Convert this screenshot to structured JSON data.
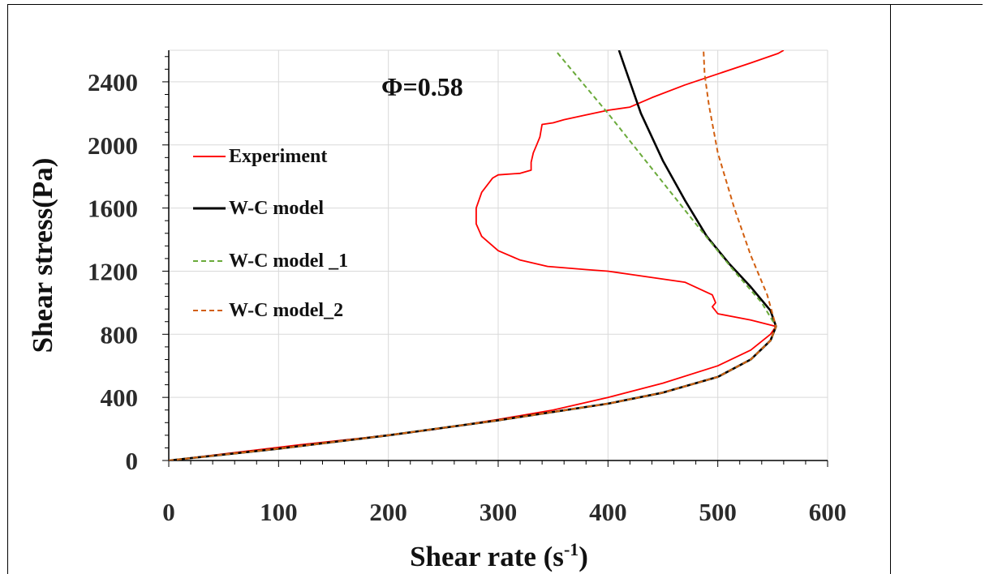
{
  "chart_data": {
    "type": "line",
    "title": "",
    "annotation": "Φ=0.58",
    "xlabel": "Shear rate (s",
    "xlabel_sup": "-1",
    "xlabel_end": ")",
    "ylabel": "Shear stress(Pa)",
    "xlim": [
      0,
      600
    ],
    "ylim": [
      0,
      2600
    ],
    "xticks": [
      0,
      100,
      200,
      300,
      400,
      500,
      600
    ],
    "yticks": [
      0,
      400,
      800,
      1200,
      1600,
      2000,
      2400
    ],
    "grid": true,
    "legend_position": "left-middle",
    "series": [
      {
        "name": "Experiment",
        "color": "#ff0000",
        "style": "solid",
        "points": [
          [
            0,
            0
          ],
          [
            60,
            50
          ],
          [
            120,
            100
          ],
          [
            180,
            145
          ],
          [
            240,
            195
          ],
          [
            300,
            260
          ],
          [
            350,
            320
          ],
          [
            400,
            400
          ],
          [
            450,
            490
          ],
          [
            500,
            600
          ],
          [
            530,
            700
          ],
          [
            548,
            800
          ],
          [
            553,
            850
          ],
          [
            530,
            890
          ],
          [
            500,
            930
          ],
          [
            495,
            975
          ],
          [
            498,
            1000
          ],
          [
            495,
            1050
          ],
          [
            470,
            1130
          ],
          [
            420,
            1180
          ],
          [
            400,
            1200
          ],
          [
            380,
            1210
          ],
          [
            345,
            1230
          ],
          [
            320,
            1270
          ],
          [
            300,
            1330
          ],
          [
            285,
            1420
          ],
          [
            280,
            1500
          ],
          [
            280,
            1600
          ],
          [
            285,
            1700
          ],
          [
            295,
            1790
          ],
          [
            300,
            1810
          ],
          [
            320,
            1820
          ],
          [
            330,
            1840
          ],
          [
            330,
            1890
          ],
          [
            332,
            1950
          ],
          [
            335,
            2000
          ],
          [
            338,
            2050
          ],
          [
            340,
            2130
          ],
          [
            350,
            2140
          ],
          [
            360,
            2160
          ],
          [
            380,
            2190
          ],
          [
            400,
            2220
          ],
          [
            420,
            2240
          ],
          [
            440,
            2300
          ],
          [
            470,
            2380
          ],
          [
            500,
            2450
          ],
          [
            530,
            2520
          ],
          [
            555,
            2580
          ],
          [
            560,
            2600
          ]
        ]
      },
      {
        "name": "W-C model",
        "color": "#000000",
        "style": "solid",
        "points": [
          [
            0,
            0
          ],
          [
            100,
            75
          ],
          [
            200,
            160
          ],
          [
            300,
            255
          ],
          [
            400,
            360
          ],
          [
            450,
            430
          ],
          [
            500,
            530
          ],
          [
            530,
            640
          ],
          [
            548,
            760
          ],
          [
            553,
            850
          ],
          [
            548,
            950
          ],
          [
            530,
            1100
          ],
          [
            510,
            1250
          ],
          [
            490,
            1420
          ],
          [
            470,
            1650
          ],
          [
            450,
            1900
          ],
          [
            430,
            2200
          ],
          [
            415,
            2500
          ],
          [
            410,
            2600
          ]
        ]
      },
      {
        "name": "W-C model _1",
        "color": "#6aaa3a",
        "style": "dashed",
        "points": [
          [
            0,
            0
          ],
          [
            100,
            75
          ],
          [
            200,
            160
          ],
          [
            300,
            255
          ],
          [
            400,
            360
          ],
          [
            450,
            430
          ],
          [
            500,
            530
          ],
          [
            530,
            640
          ],
          [
            548,
            760
          ],
          [
            553,
            850
          ],
          [
            540,
            1000
          ],
          [
            515,
            1200
          ],
          [
            480,
            1500
          ],
          [
            440,
            1850
          ],
          [
            400,
            2200
          ],
          [
            370,
            2450
          ],
          [
            352,
            2600
          ]
        ]
      },
      {
        "name": "W-C model_2",
        "color": "#d25f10",
        "style": "dashed",
        "points": [
          [
            0,
            0
          ],
          [
            100,
            75
          ],
          [
            200,
            160
          ],
          [
            300,
            255
          ],
          [
            400,
            360
          ],
          [
            450,
            430
          ],
          [
            500,
            530
          ],
          [
            530,
            640
          ],
          [
            548,
            760
          ],
          [
            553,
            850
          ],
          [
            545,
            1050
          ],
          [
            530,
            1300
          ],
          [
            515,
            1600
          ],
          [
            500,
            1950
          ],
          [
            492,
            2250
          ],
          [
            488,
            2450
          ],
          [
            487,
            2600
          ]
        ]
      }
    ]
  }
}
